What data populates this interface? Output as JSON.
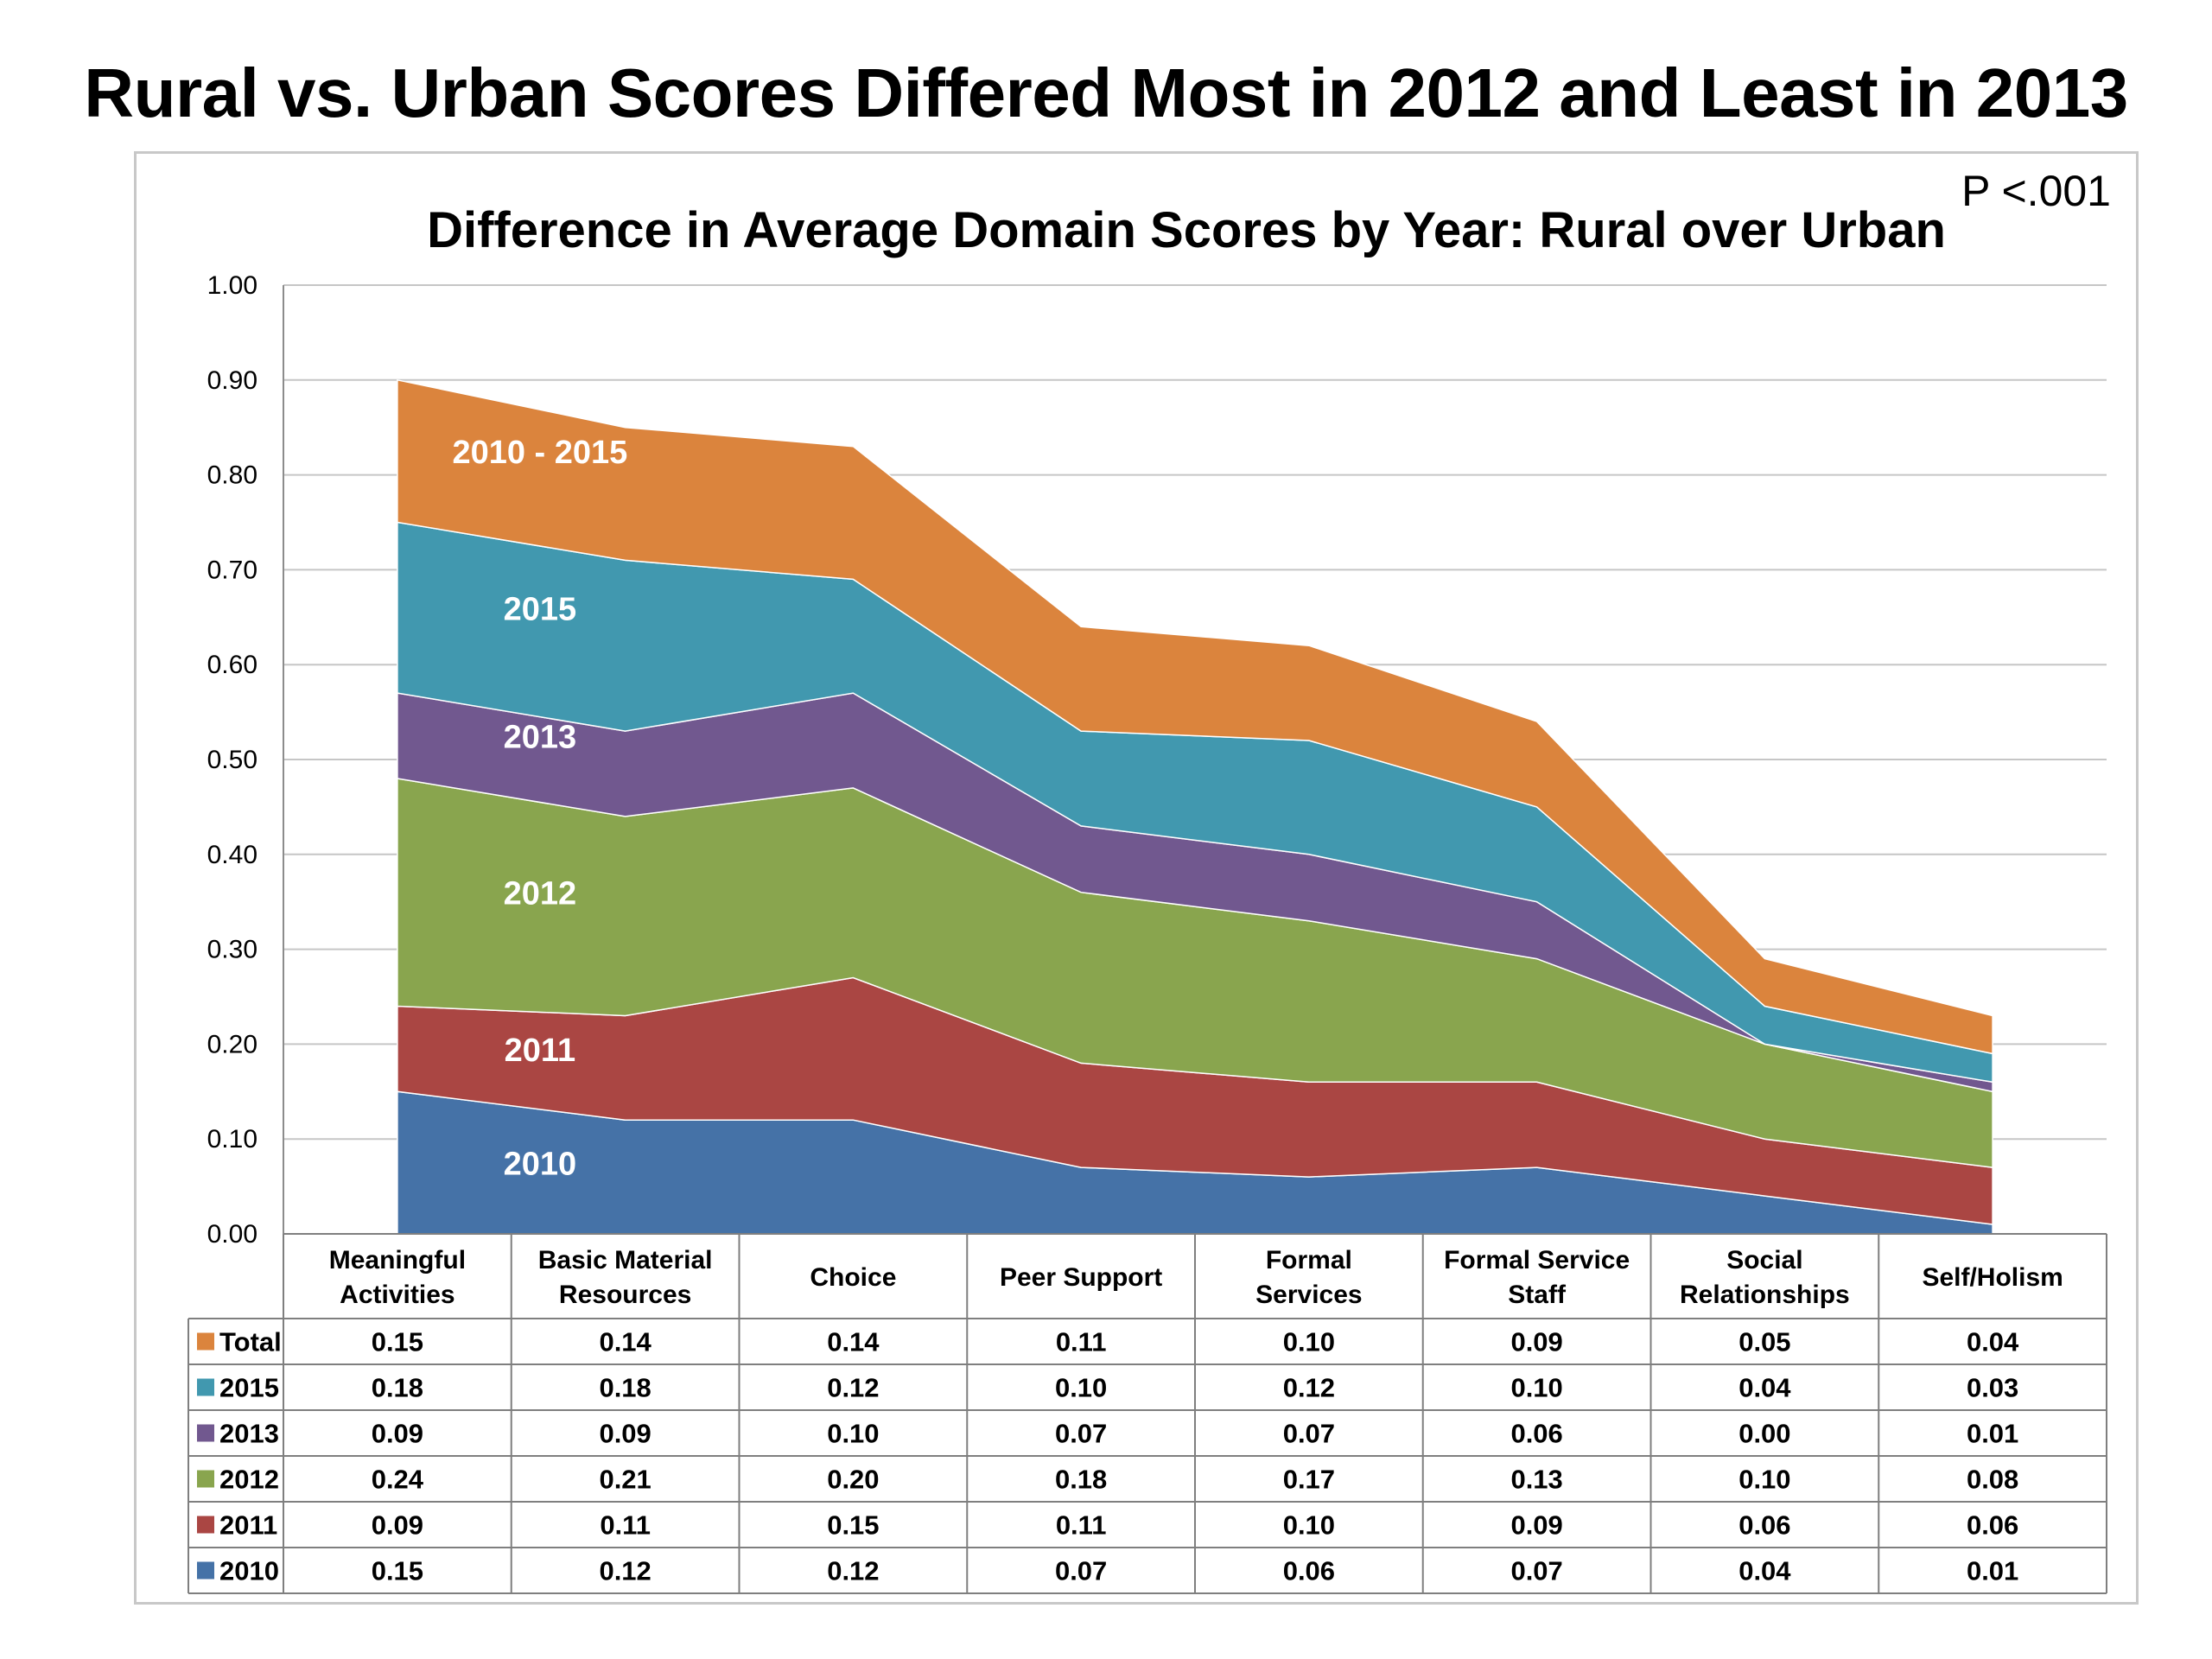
{
  "slide": {
    "title": "Rural vs. Urban Scores Differed Most in 2012 and Least in 2013"
  },
  "chart_data": {
    "type": "area",
    "stacked": true,
    "title": "Difference in Average Domain Scores by Year: Rural over Urban",
    "annotation": "P <.001",
    "ylim": [
      0,
      1.0
    ],
    "yticks": [
      "0.00",
      "0.10",
      "0.20",
      "0.30",
      "0.40",
      "0.50",
      "0.60",
      "0.70",
      "0.80",
      "0.90",
      "1.00"
    ],
    "grid": true,
    "categories": [
      "Meaningful Activities",
      "Basic Material Resources",
      "Choice",
      "Peer Support",
      "Formal Services",
      "Formal Service Staff",
      "Social Relationships",
      "Self/Holism"
    ],
    "series": [
      {
        "name": "2010",
        "color": "#4572a7",
        "band_label": "2010",
        "values": [
          0.15,
          0.12,
          0.12,
          0.07,
          0.06,
          0.07,
          0.04,
          0.01
        ]
      },
      {
        "name": "2011",
        "color": "#aa4643",
        "band_label": "2011",
        "values": [
          0.09,
          0.11,
          0.15,
          0.11,
          0.1,
          0.09,
          0.06,
          0.06
        ]
      },
      {
        "name": "2012",
        "color": "#89a54e",
        "band_label": "2012",
        "values": [
          0.24,
          0.21,
          0.2,
          0.18,
          0.17,
          0.13,
          0.1,
          0.08
        ]
      },
      {
        "name": "2013",
        "color": "#71588f",
        "band_label": "2013",
        "values": [
          0.09,
          0.09,
          0.1,
          0.07,
          0.07,
          0.06,
          0.0,
          0.01
        ]
      },
      {
        "name": "2015",
        "color": "#4198af",
        "band_label": "2015",
        "values": [
          0.18,
          0.18,
          0.12,
          0.1,
          0.12,
          0.1,
          0.04,
          0.03
        ]
      },
      {
        "name": "Total",
        "color": "#db843d",
        "band_label": "2010 - 2015",
        "values": [
          0.15,
          0.14,
          0.14,
          0.11,
          0.1,
          0.09,
          0.05,
          0.04
        ]
      }
    ],
    "table": {
      "row_order": [
        "Total",
        "2015",
        "2013",
        "2012",
        "2011",
        "2010"
      ],
      "cells": {
        "Total": [
          "0.15",
          "0.14",
          "0.14",
          "0.11",
          "0.10",
          "0.09",
          "0.05",
          "0.04"
        ],
        "2015": [
          "0.18",
          "0.18",
          "0.12",
          "0.10",
          "0.12",
          "0.10",
          "0.04",
          "0.03"
        ],
        "2013": [
          "0.09",
          "0.09",
          "0.10",
          "0.07",
          "0.07",
          "0.06",
          "0.00",
          "0.01"
        ],
        "2012": [
          "0.24",
          "0.21",
          "0.20",
          "0.18",
          "0.17",
          "0.13",
          "0.10",
          "0.08"
        ],
        "2011": [
          "0.09",
          "0.11",
          "0.15",
          "0.11",
          "0.10",
          "0.09",
          "0.06",
          "0.06"
        ],
        "2010": [
          "0.15",
          "0.12",
          "0.12",
          "0.07",
          "0.06",
          "0.07",
          "0.04",
          "0.01"
        ]
      }
    }
  }
}
